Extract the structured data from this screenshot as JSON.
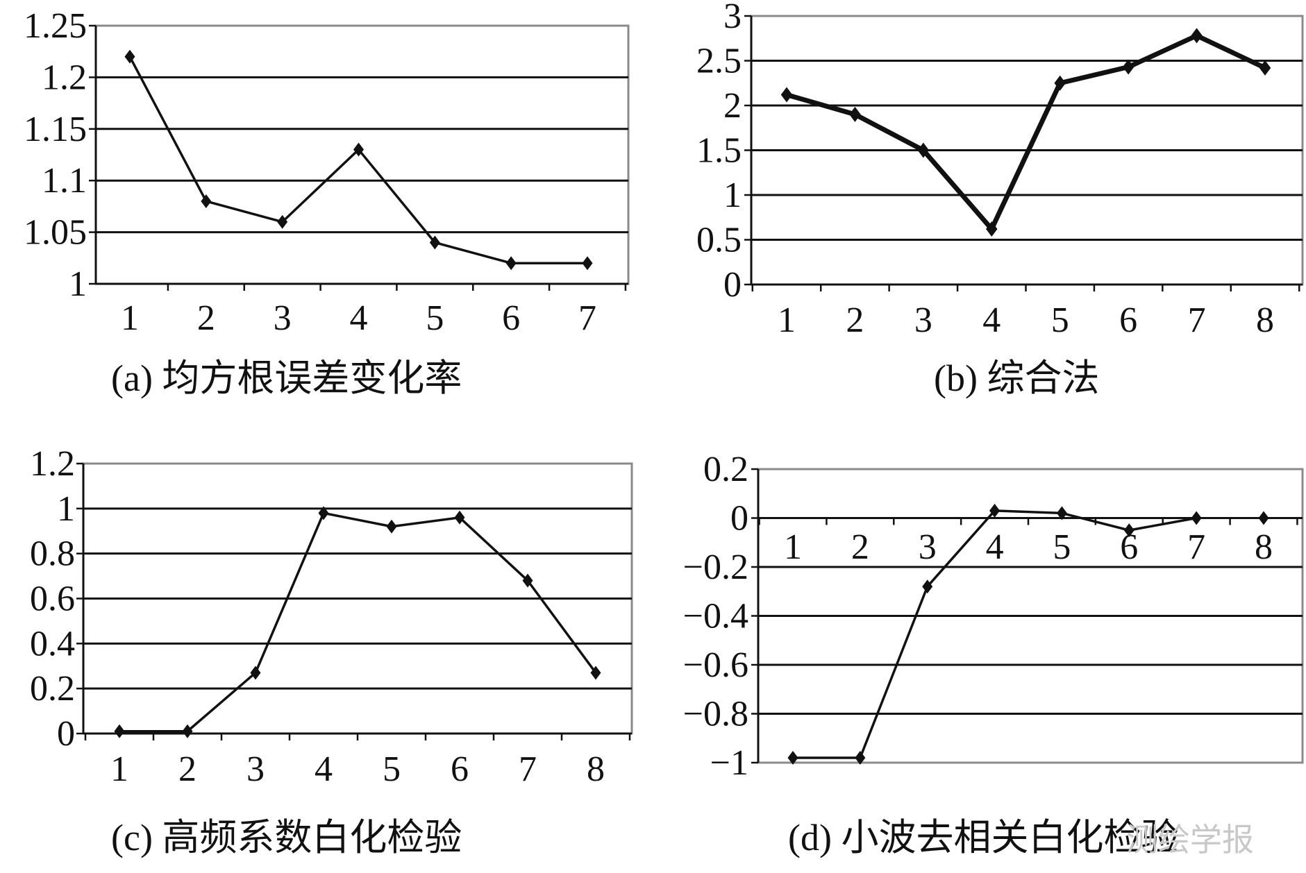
{
  "watermark": "测绘学报",
  "chart_data": [
    {
      "type": "line",
      "caption": "(a) 均方根误差变化率",
      "categories": [
        "1",
        "2",
        "3",
        "4",
        "5",
        "6",
        "7"
      ],
      "values": [
        1.22,
        1.08,
        1.06,
        1.13,
        1.04,
        1.02,
        1.02
      ],
      "ylim": [
        1,
        1.25
      ],
      "yticks": [
        "1",
        "1.05",
        "1.1",
        "1.15",
        "1.2",
        "1.25"
      ],
      "ytick_values": [
        1,
        1.05,
        1.1,
        1.15,
        1.2,
        1.25
      ],
      "grid": true,
      "line_weight": "thin"
    },
    {
      "type": "line",
      "caption": "(b) 综合法",
      "categories": [
        "1",
        "2",
        "3",
        "4",
        "5",
        "6",
        "7",
        "8"
      ],
      "values": [
        2.12,
        1.9,
        1.5,
        0.62,
        2.25,
        2.43,
        2.78,
        2.42
      ],
      "ylim": [
        0,
        3
      ],
      "yticks": [
        "0",
        "0.5",
        "1",
        "1.5",
        "2",
        "2.5",
        "3"
      ],
      "ytick_values": [
        0,
        0.5,
        1,
        1.5,
        2,
        2.5,
        3
      ],
      "grid": true,
      "line_weight": "thick"
    },
    {
      "type": "line",
      "caption": "(c) 高频系数白化检验",
      "categories": [
        "1",
        "2",
        "3",
        "4",
        "5",
        "6",
        "7",
        "8"
      ],
      "values": [
        0.01,
        0.01,
        0.27,
        0.98,
        0.92,
        0.96,
        0.68,
        0.27
      ],
      "ylim": [
        0,
        1.2
      ],
      "yticks": [
        "0",
        "0.2",
        "0.4",
        "0.6",
        "0.8",
        "1",
        "1.2"
      ],
      "ytick_values": [
        0,
        0.2,
        0.4,
        0.6,
        0.8,
        1,
        1.2
      ],
      "grid": true,
      "line_weight": "thin"
    },
    {
      "type": "line",
      "caption": "(d) 小波去相关白化检验",
      "categories": [
        "1",
        "2",
        "3",
        "4",
        "5",
        "6",
        "7",
        "8"
      ],
      "values": [
        -0.98,
        -0.98,
        -0.28,
        0.03,
        0.02,
        -0.05,
        0.0,
        0.0
      ],
      "ylim": [
        -1,
        0.2
      ],
      "yticks": [
        "−1",
        "−0.8",
        "−0.6",
        "−0.4",
        "−0.2",
        "0",
        "0.2"
      ],
      "ytick_values": [
        -1,
        -0.8,
        -0.6,
        -0.4,
        -0.2,
        0,
        0.2
      ],
      "grid": true,
      "line_weight": "thin",
      "xaxis_at_zero": true,
      "last_point_marker_only": true
    }
  ]
}
